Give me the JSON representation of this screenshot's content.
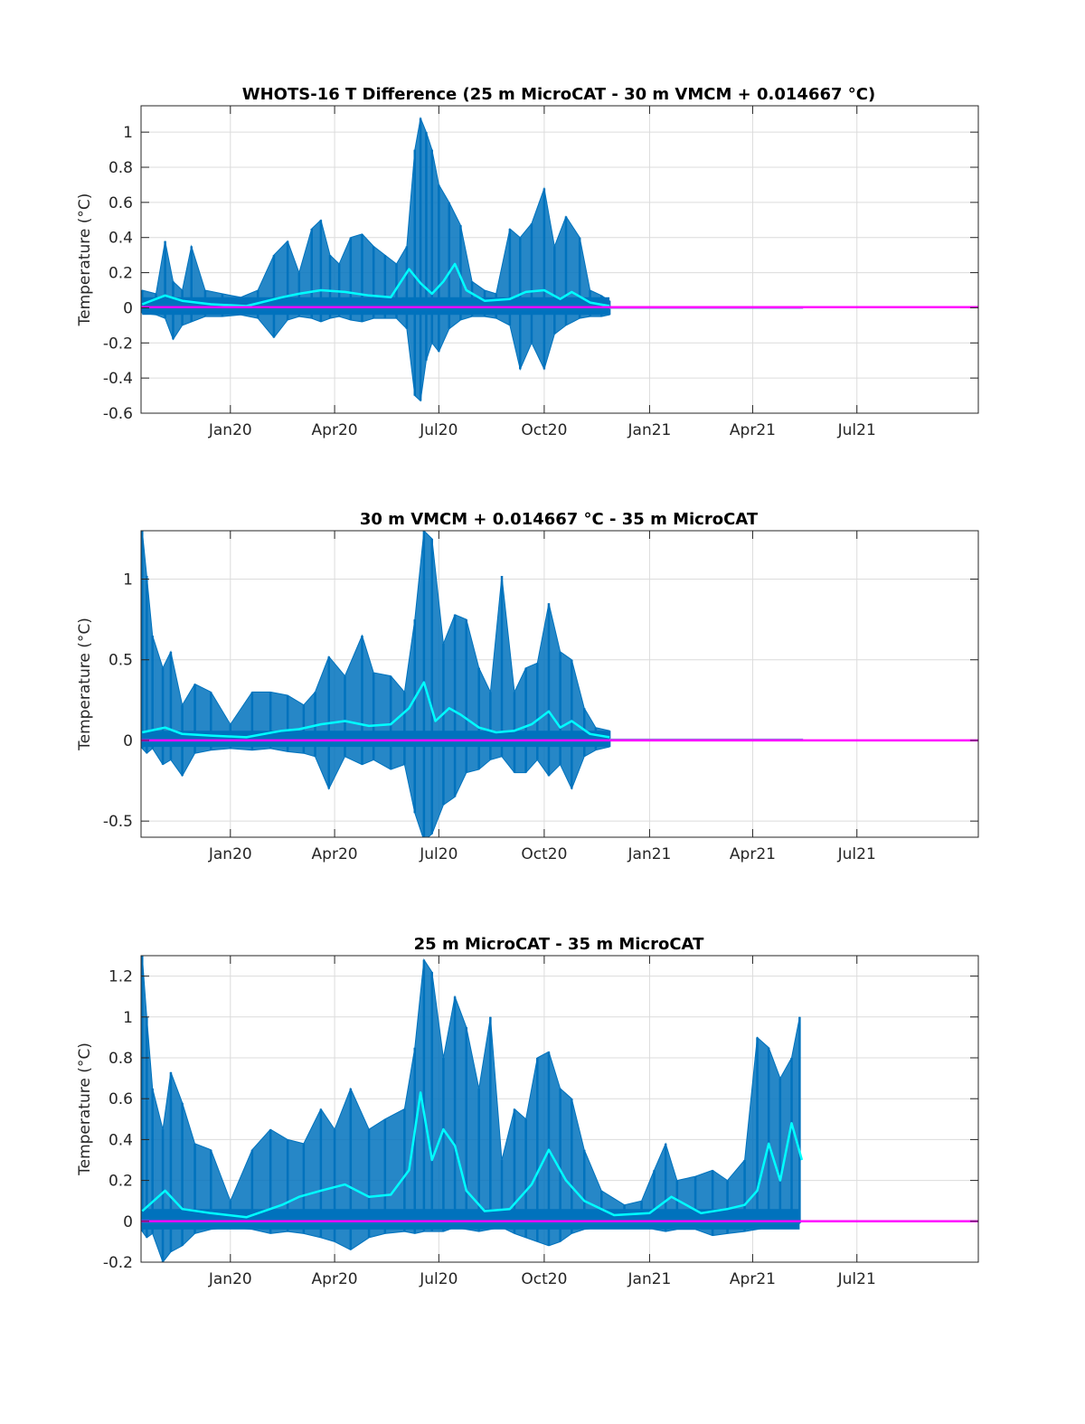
{
  "figure": {
    "colors": {
      "raw": "#0072BD",
      "smoothed": "#00FFFF",
      "zero_line": "#FF00FF",
      "grid": "#DCDCDC",
      "axes": "#262626"
    }
  },
  "chart_data": [
    {
      "type": "line",
      "title": "WHOTS-16 T Difference (25 m MicroCAT - 30 m VMCM + 0.014667 °C)",
      "ylabel": "Temperature (°C)",
      "xlabel": "",
      "x_range": [
        "2019-10-15",
        "2021-10-15"
      ],
      "ylim": [
        -0.6,
        1.15
      ],
      "x_ticks": [
        {
          "date": "2020-01-01",
          "label": "Jan20"
        },
        {
          "date": "2020-04-01",
          "label": "Apr20"
        },
        {
          "date": "2020-07-01",
          "label": "Jul20"
        },
        {
          "date": "2020-10-01",
          "label": "Oct20"
        },
        {
          "date": "2021-01-01",
          "label": "Jan21"
        },
        {
          "date": "2021-04-01",
          "label": "Apr21"
        },
        {
          "date": "2021-07-01",
          "label": "Jul21"
        }
      ],
      "y_ticks": [
        -0.6,
        -0.4,
        -0.2,
        0,
        0.2,
        0.4,
        0.6,
        0.8,
        1
      ],
      "y_tick_labels": [
        "-0.6",
        "-0.4",
        "-0.2",
        "0",
        "0.2",
        "0.4",
        "0.6",
        "0.8",
        "1"
      ],
      "grid": true,
      "series": [
        {
          "kind": "raw",
          "x": [
            "2019-10-16",
            "2019-10-28",
            "2019-11-05",
            "2019-11-12",
            "2019-11-20",
            "2019-11-28",
            "2019-12-10",
            "2019-12-25",
            "2020-01-10",
            "2020-01-25",
            "2020-02-08",
            "2020-02-20",
            "2020-03-01",
            "2020-03-12",
            "2020-03-20",
            "2020-03-28",
            "2020-04-05",
            "2020-04-15",
            "2020-04-25",
            "2020-05-05",
            "2020-05-15",
            "2020-05-25",
            "2020-06-03",
            "2020-06-10",
            "2020-06-15",
            "2020-06-20",
            "2020-06-25",
            "2020-07-01",
            "2020-07-10",
            "2020-07-20",
            "2020-07-30",
            "2020-08-10",
            "2020-08-20",
            "2020-09-01",
            "2020-09-10",
            "2020-09-20",
            "2020-10-01",
            "2020-10-10",
            "2020-10-20",
            "2020-11-01",
            "2020-11-10",
            "2020-11-20",
            "2020-11-27"
          ],
          "high": [
            0.1,
            0.08,
            0.38,
            0.15,
            0.1,
            0.35,
            0.1,
            0.08,
            0.06,
            0.1,
            0.3,
            0.38,
            0.2,
            0.45,
            0.5,
            0.3,
            0.25,
            0.4,
            0.42,
            0.35,
            0.3,
            0.25,
            0.35,
            0.9,
            1.08,
            1.0,
            0.9,
            0.7,
            0.6,
            0.47,
            0.15,
            0.1,
            0.08,
            0.45,
            0.4,
            0.48,
            0.68,
            0.35,
            0.52,
            0.4,
            0.1,
            0.07,
            0.04
          ],
          "low": [
            -0.03,
            -0.04,
            -0.06,
            -0.18,
            -0.1,
            -0.08,
            -0.05,
            -0.05,
            -0.04,
            -0.06,
            -0.17,
            -0.07,
            -0.05,
            -0.06,
            -0.08,
            -0.06,
            -0.05,
            -0.07,
            -0.08,
            -0.06,
            -0.06,
            -0.06,
            -0.12,
            -0.5,
            -0.53,
            -0.3,
            -0.2,
            -0.25,
            -0.12,
            -0.07,
            -0.05,
            -0.05,
            -0.06,
            -0.1,
            -0.35,
            -0.2,
            -0.35,
            -0.15,
            -0.1,
            -0.06,
            -0.05,
            -0.05,
            -0.04
          ]
        },
        {
          "kind": "smoothed",
          "x": [
            "2019-10-16",
            "2019-11-05",
            "2019-11-20",
            "2019-12-15",
            "2020-01-15",
            "2020-02-15",
            "2020-03-01",
            "2020-03-20",
            "2020-04-10",
            "2020-05-01",
            "2020-05-20",
            "2020-06-05",
            "2020-06-15",
            "2020-06-25",
            "2020-07-05",
            "2020-07-15",
            "2020-07-25",
            "2020-08-10",
            "2020-09-01",
            "2020-09-15",
            "2020-10-01",
            "2020-10-15",
            "2020-10-25",
            "2020-11-10",
            "2020-11-27"
          ],
          "y": [
            0.02,
            0.07,
            0.04,
            0.02,
            0.01,
            0.06,
            0.08,
            0.1,
            0.09,
            0.07,
            0.06,
            0.22,
            0.14,
            0.08,
            0.15,
            0.25,
            0.1,
            0.04,
            0.05,
            0.09,
            0.1,
            0.05,
            0.09,
            0.03,
            0.01
          ]
        },
        {
          "kind": "flat",
          "x": [
            "2020-11-27",
            "2021-05-15"
          ],
          "y": [
            0,
            0
          ]
        },
        {
          "kind": "zero",
          "x": [
            "2019-10-15",
            "2021-10-15"
          ],
          "y": [
            0.003,
            0.003
          ]
        }
      ]
    },
    {
      "type": "line",
      "title": "30 m VMCM + 0.014667 °C - 35 m MicroCAT",
      "ylabel": "Temperature (°C)",
      "xlabel": "",
      "x_range": [
        "2019-10-15",
        "2021-10-15"
      ],
      "ylim": [
        -0.6,
        1.3
      ],
      "x_ticks": [
        {
          "date": "2020-01-01",
          "label": "Jan20"
        },
        {
          "date": "2020-04-01",
          "label": "Apr20"
        },
        {
          "date": "2020-07-01",
          "label": "Jul20"
        },
        {
          "date": "2020-10-01",
          "label": "Oct20"
        },
        {
          "date": "2021-01-01",
          "label": "Jan21"
        },
        {
          "date": "2021-04-01",
          "label": "Apr21"
        },
        {
          "date": "2021-07-01",
          "label": "Jul21"
        }
      ],
      "y_ticks": [
        -0.5,
        0,
        0.5,
        1
      ],
      "y_tick_labels": [
        "-0.5",
        "0",
        "0.5",
        "1"
      ],
      "grid": true,
      "series": [
        {
          "kind": "raw",
          "x": [
            "2019-10-16",
            "2019-10-20",
            "2019-10-25",
            "2019-11-03",
            "2019-11-10",
            "2019-11-20",
            "2019-12-01",
            "2019-12-15",
            "2020-01-01",
            "2020-01-20",
            "2020-02-05",
            "2020-02-20",
            "2020-03-05",
            "2020-03-15",
            "2020-03-27",
            "2020-04-10",
            "2020-04-25",
            "2020-05-05",
            "2020-05-20",
            "2020-06-01",
            "2020-06-10",
            "2020-06-18",
            "2020-06-25",
            "2020-07-05",
            "2020-07-15",
            "2020-07-25",
            "2020-08-05",
            "2020-08-15",
            "2020-08-25",
            "2020-09-05",
            "2020-09-15",
            "2020-09-25",
            "2020-10-05",
            "2020-10-15",
            "2020-10-25",
            "2020-11-05",
            "2020-11-15",
            "2020-11-27"
          ],
          "high": [
            1.3,
            1.02,
            0.65,
            0.45,
            0.55,
            0.22,
            0.35,
            0.3,
            0.1,
            0.3,
            0.3,
            0.28,
            0.22,
            0.3,
            0.52,
            0.4,
            0.65,
            0.42,
            0.4,
            0.3,
            0.75,
            1.3,
            1.25,
            0.6,
            0.78,
            0.75,
            0.45,
            0.3,
            1.02,
            0.3,
            0.45,
            0.48,
            0.85,
            0.55,
            0.5,
            0.2,
            0.08,
            0.06
          ],
          "low": [
            -0.05,
            -0.08,
            -0.05,
            -0.15,
            -0.12,
            -0.22,
            -0.08,
            -0.06,
            -0.05,
            -0.06,
            -0.05,
            -0.07,
            -0.08,
            -0.1,
            -0.3,
            -0.1,
            -0.15,
            -0.12,
            -0.18,
            -0.15,
            -0.45,
            -0.62,
            -0.58,
            -0.4,
            -0.35,
            -0.2,
            -0.18,
            -0.12,
            -0.1,
            -0.2,
            -0.2,
            -0.12,
            -0.22,
            -0.15,
            -0.3,
            -0.1,
            -0.06,
            -0.04
          ]
        },
        {
          "kind": "smoothed",
          "x": [
            "2019-10-16",
            "2019-11-05",
            "2019-11-20",
            "2019-12-15",
            "2020-01-15",
            "2020-02-15",
            "2020-03-01",
            "2020-03-20",
            "2020-04-10",
            "2020-05-01",
            "2020-05-20",
            "2020-06-05",
            "2020-06-18",
            "2020-06-28",
            "2020-07-10",
            "2020-07-20",
            "2020-08-05",
            "2020-08-20",
            "2020-09-05",
            "2020-09-20",
            "2020-10-05",
            "2020-10-15",
            "2020-10-25",
            "2020-11-10",
            "2020-11-27"
          ],
          "y": [
            0.05,
            0.08,
            0.04,
            0.03,
            0.02,
            0.06,
            0.07,
            0.1,
            0.12,
            0.09,
            0.1,
            0.2,
            0.36,
            0.12,
            0.2,
            0.16,
            0.08,
            0.05,
            0.06,
            0.1,
            0.18,
            0.08,
            0.12,
            0.04,
            0.02
          ]
        },
        {
          "kind": "flat",
          "x": [
            "2020-11-27",
            "2021-05-15"
          ],
          "y": [
            0.005,
            0.005
          ]
        },
        {
          "kind": "zero",
          "x": [
            "2019-10-15",
            "2021-10-15"
          ],
          "y": [
            0.0,
            0.0
          ]
        }
      ]
    },
    {
      "type": "line",
      "title": "25 m MicroCAT - 35 m MicroCAT",
      "ylabel": "Temperature (°C)",
      "xlabel": "",
      "x_range": [
        "2019-10-15",
        "2021-10-15"
      ],
      "ylim": [
        -0.2,
        1.3
      ],
      "x_ticks": [
        {
          "date": "2020-01-01",
          "label": "Jan20"
        },
        {
          "date": "2020-04-01",
          "label": "Apr20"
        },
        {
          "date": "2020-07-01",
          "label": "Jul20"
        },
        {
          "date": "2020-10-01",
          "label": "Oct20"
        },
        {
          "date": "2021-01-01",
          "label": "Jan21"
        },
        {
          "date": "2021-04-01",
          "label": "Apr21"
        },
        {
          "date": "2021-07-01",
          "label": "Jul21"
        }
      ],
      "y_ticks": [
        -0.2,
        0,
        0.2,
        0.4,
        0.6,
        0.8,
        1,
        1.2
      ],
      "y_tick_labels": [
        "-0.2",
        "0",
        "0.2",
        "0.4",
        "0.6",
        "0.8",
        "1",
        "1.2"
      ],
      "grid": true,
      "series": [
        {
          "kind": "raw",
          "x": [
            "2019-10-16",
            "2019-10-20",
            "2019-10-25",
            "2019-11-03",
            "2019-11-10",
            "2019-11-20",
            "2019-12-01",
            "2019-12-15",
            "2020-01-01",
            "2020-01-20",
            "2020-02-05",
            "2020-02-20",
            "2020-03-05",
            "2020-03-20",
            "2020-04-01",
            "2020-04-15",
            "2020-05-01",
            "2020-05-15",
            "2020-06-01",
            "2020-06-10",
            "2020-06-18",
            "2020-06-25",
            "2020-07-05",
            "2020-07-15",
            "2020-07-25",
            "2020-08-05",
            "2020-08-15",
            "2020-08-25",
            "2020-09-05",
            "2020-09-15",
            "2020-09-25",
            "2020-10-05",
            "2020-10-15",
            "2020-10-25",
            "2020-11-05",
            "2020-11-20",
            "2020-12-10",
            "2020-12-25",
            "2021-01-05",
            "2021-01-15",
            "2021-01-25",
            "2021-02-10",
            "2021-02-25",
            "2021-03-10",
            "2021-03-25",
            "2021-04-05",
            "2021-04-15",
            "2021-04-25",
            "2021-05-05",
            "2021-05-12"
          ],
          "high": [
            1.3,
            1.0,
            0.65,
            0.45,
            0.73,
            0.58,
            0.38,
            0.35,
            0.1,
            0.35,
            0.45,
            0.4,
            0.38,
            0.55,
            0.45,
            0.65,
            0.45,
            0.5,
            0.55,
            0.85,
            1.28,
            1.22,
            0.8,
            1.1,
            0.95,
            0.65,
            1.0,
            0.3,
            0.55,
            0.5,
            0.8,
            0.83,
            0.65,
            0.6,
            0.35,
            0.15,
            0.08,
            0.1,
            0.25,
            0.38,
            0.2,
            0.22,
            0.25,
            0.2,
            0.3,
            0.9,
            0.85,
            0.7,
            0.8,
            1.0
          ],
          "low": [
            -0.05,
            -0.08,
            -0.06,
            -0.2,
            -0.15,
            -0.12,
            -0.06,
            -0.04,
            -0.03,
            -0.04,
            -0.06,
            -0.05,
            -0.06,
            -0.08,
            -0.1,
            -0.14,
            -0.08,
            -0.06,
            -0.05,
            -0.06,
            -0.05,
            -0.05,
            -0.05,
            -0.03,
            -0.04,
            -0.05,
            -0.04,
            -0.03,
            -0.06,
            -0.08,
            -0.1,
            -0.12,
            -0.1,
            -0.06,
            -0.04,
            -0.03,
            -0.03,
            -0.02,
            -0.04,
            -0.05,
            -0.04,
            -0.04,
            -0.07,
            -0.06,
            -0.05,
            -0.04,
            -0.03,
            -0.02,
            -0.02,
            -0.01
          ]
        },
        {
          "kind": "smoothed",
          "x": [
            "2019-10-16",
            "2019-11-05",
            "2019-11-20",
            "2019-12-15",
            "2020-01-15",
            "2020-02-15",
            "2020-03-01",
            "2020-03-20",
            "2020-04-10",
            "2020-05-01",
            "2020-05-20",
            "2020-06-05",
            "2020-06-15",
            "2020-06-25",
            "2020-07-05",
            "2020-07-15",
            "2020-07-25",
            "2020-08-10",
            "2020-09-01",
            "2020-09-20",
            "2020-10-05",
            "2020-10-20",
            "2020-11-05",
            "2020-12-01",
            "2021-01-01",
            "2021-01-20",
            "2021-02-15",
            "2021-03-10",
            "2021-03-25",
            "2021-04-05",
            "2021-04-15",
            "2021-04-25",
            "2021-05-05",
            "2021-05-14"
          ],
          "y": [
            0.05,
            0.15,
            0.06,
            0.04,
            0.02,
            0.08,
            0.12,
            0.15,
            0.18,
            0.12,
            0.13,
            0.25,
            0.63,
            0.3,
            0.45,
            0.37,
            0.15,
            0.05,
            0.06,
            0.18,
            0.35,
            0.2,
            0.1,
            0.03,
            0.04,
            0.12,
            0.04,
            0.06,
            0.08,
            0.15,
            0.38,
            0.2,
            0.48,
            0.3
          ]
        },
        {
          "kind": "zero",
          "x": [
            "2019-10-15",
            "2021-10-15"
          ],
          "y": [
            0.0,
            0.0
          ]
        }
      ]
    }
  ]
}
